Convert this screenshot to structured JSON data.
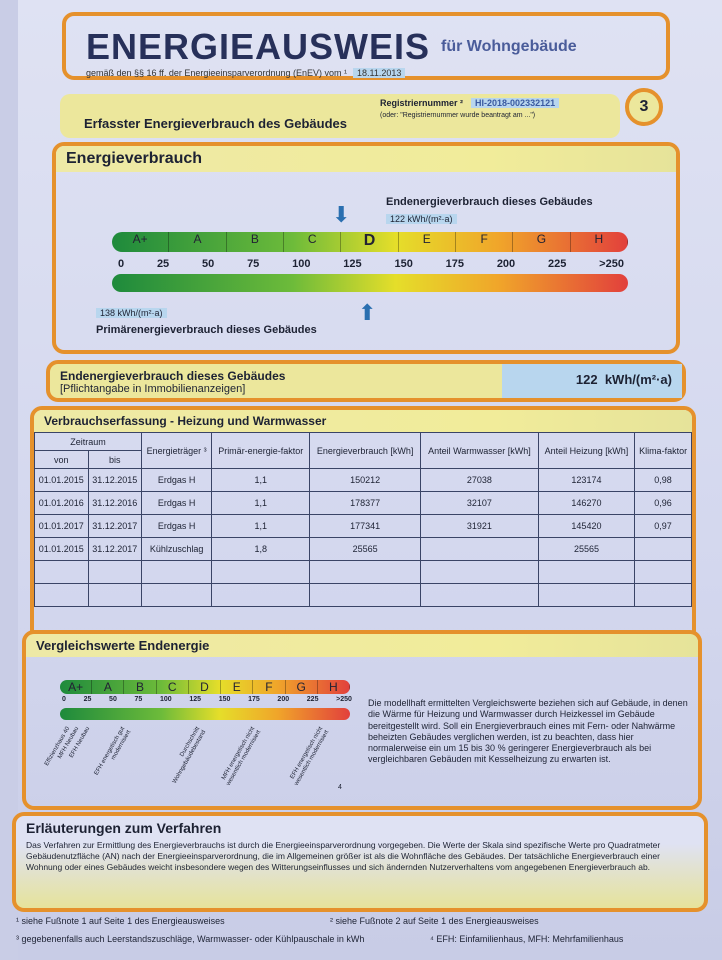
{
  "header": {
    "title": "ENERGIEAUSWEIS",
    "title_suffix": "für Wohngebäude",
    "subtitle": "gemäß den §§ 16 ff. der Energieeinsparverordnung (EnEV) vom ¹",
    "enev_date": "18.11.2013",
    "page_number": "3"
  },
  "registration": {
    "section_title": "Erfasster Energieverbrauch des Gebäudes",
    "label": "Registriernummer ²",
    "number": "HI-2018-002332121",
    "alt": "(oder: \"Registriernummer wurde beantragt am ...\")"
  },
  "energy": {
    "title": "Energieverbrauch",
    "end_label": "Endenergieverbrauch dieses Gebäudes",
    "end_value": "122 kWh/(m²·a)",
    "primary_label": "Primärenergieverbrauch dieses Gebäudes",
    "primary_value": "138 kWh/(m²·a)",
    "classes": [
      "A+",
      "A",
      "B",
      "C",
      "D",
      "E",
      "F",
      "G",
      "H"
    ],
    "current_class": "D",
    "ticks": [
      "0",
      "25",
      "50",
      "75",
      "100",
      "125",
      "150",
      "175",
      "200",
      "225",
      ">250"
    ],
    "end_indicator": 122,
    "primary_indicator": 138
  },
  "summary": {
    "label": "Endenergieverbrauch dieses Gebäudes",
    "sublabel": "[Pflichtangabe in Immobilienanzeigen]",
    "value": "122",
    "unit": "kWh/(m²·a)"
  },
  "consumption": {
    "title": "Verbrauchserfassung - Heizung und Warmwasser",
    "headers": {
      "period": "Zeitraum",
      "from": "von",
      "to": "bis",
      "carrier": "Energieträger ³",
      "factor": "Primär-energie-faktor",
      "consumption": "Energieverbrauch [kWh]",
      "hot_water": "Anteil Warmwasser [kWh]",
      "heating": "Anteil Heizung [kWh]",
      "climate": "Klima-faktor"
    },
    "rows": [
      [
        "01.01.2015",
        "31.12.2015",
        "Erdgas H",
        "1,1",
        "150212",
        "27038",
        "123174",
        "0,98"
      ],
      [
        "01.01.2016",
        "31.12.2016",
        "Erdgas H",
        "1,1",
        "178377",
        "32107",
        "146270",
        "0,96"
      ],
      [
        "01.01.2017",
        "31.12.2017",
        "Erdgas H",
        "1,1",
        "177341",
        "31921",
        "145420",
        "0,97"
      ],
      [
        "01.01.2015",
        "31.12.2017",
        "Kühlzuschlag",
        "1,8",
        "25565",
        "",
        "25565",
        ""
      ],
      [
        "",
        "",
        "",
        "",
        "",
        "",
        "",
        ""
      ],
      [
        "",
        "",
        "",
        "",
        "",
        "",
        "",
        ""
      ]
    ]
  },
  "comparison": {
    "title": "Vergleichswerte Endenergie",
    "classes": [
      "A+",
      "A",
      "B",
      "C",
      "D",
      "E",
      "F",
      "G",
      "H"
    ],
    "ticks": [
      "0",
      "25",
      "50",
      "75",
      "100",
      "125",
      "150",
      "175",
      "200",
      "225",
      ">250"
    ],
    "references": [
      "Effizienzhaus 40",
      "MFH Neubau",
      "EFH Neubau",
      "EFH energetisch gut modernisiert",
      "Durchschnitt Wohngebäudebestand",
      "MFH energetisch nicht wesentlich modernisiert",
      "EFH energetisch nicht wesentlich modernisiert"
    ],
    "footnote_mark": "4",
    "text": "Die modellhaft ermittelten Vergleichswerte beziehen sich auf Gebäude, in denen die Wärme für Heizung und Warmwasser durch Heizkessel im Gebäude bereitgestellt wird. Soll ein Energieverbrauch eines mit Fern- oder Nahwärme beheizten Gebäudes verglichen werden, ist zu beachten, dass hier normalerweise ein um 15 bis 30 % geringerer Energieverbrauch als bei vergleichbaren Gebäuden mit Kesselheizung zu erwarten ist."
  },
  "explanation": {
    "title": "Erläuterungen zum Verfahren",
    "text": "Das Verfahren zur Ermittlung des Energieverbrauchs ist durch die Energieeinsparverordnung vorgegeben. Die Werte der Skala sind spezifische Werte pro Quadratmeter Gebäudenutzfläche (AN) nach der Energieeinsparverordnung, die im Allgemeinen größer ist als die Wohnfläche des Gebäudes. Der tatsächliche Energieverbrauch einer Wohnung oder eines Gebäudes weicht insbesondere wegen des Witterungseinflusses und sich ändernden Nutzerverhaltens vom angegebenen Energieverbrauch ab."
  },
  "footnotes": [
    "¹ siehe Fußnote 1 auf Seite 1 des Energieausweises",
    "² siehe Fußnote 2 auf Seite 1 des Energieausweises",
    "³ gegebenenfalls auch Leerstandszuschläge, Warmwasser- oder Kühlpauschale in kWh",
    "⁴ EFH: Einfamilienhaus, MFH: Mehrfamilienhaus"
  ]
}
